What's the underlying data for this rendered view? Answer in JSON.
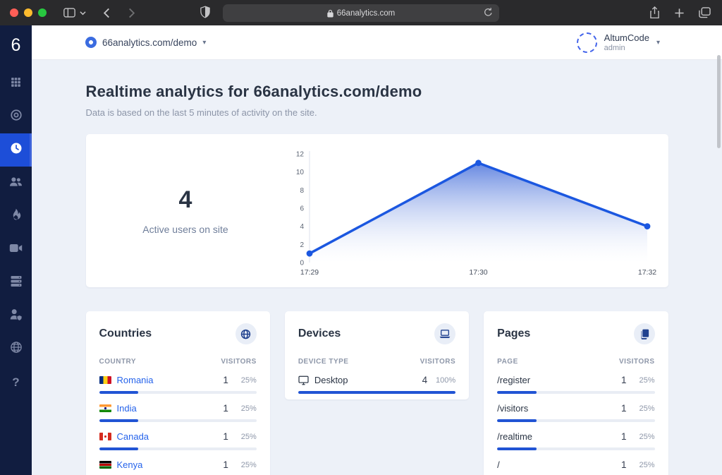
{
  "browser": {
    "url": "66analytics.com",
    "traffic_lights": [
      "#ff5f57",
      "#febc2e",
      "#28c840"
    ]
  },
  "sidebar": {
    "logo": "6",
    "items": [
      {
        "icon": "grid-icon",
        "active": false
      },
      {
        "icon": "target-icon",
        "active": false
      },
      {
        "icon": "clock-icon",
        "active": true
      },
      {
        "icon": "users-icon",
        "active": false
      },
      {
        "icon": "flame-icon",
        "active": false
      },
      {
        "icon": "video-icon",
        "active": false
      },
      {
        "icon": "server-icon",
        "active": false
      },
      {
        "icon": "user-shield-icon",
        "active": false
      },
      {
        "icon": "globe-icon",
        "active": false
      },
      {
        "icon": "question-icon",
        "active": false
      }
    ]
  },
  "topbar": {
    "site_selector": "66analytics.com/demo",
    "user_name": "AltumCode",
    "user_role": "admin"
  },
  "page": {
    "title": "Realtime analytics for 66analytics.com/demo",
    "subtitle": "Data is based on the last 5 minutes of activity on the site."
  },
  "realtime": {
    "active_users": "4",
    "active_label": "Active users on site"
  },
  "chart_data": {
    "type": "area",
    "x": [
      "17:29",
      "17:30",
      "17:32"
    ],
    "values": [
      1,
      11,
      4
    ],
    "ylim": [
      0,
      12
    ],
    "yticks": [
      0,
      2,
      4,
      6,
      8,
      10,
      12
    ],
    "line_color": "#1b57e0",
    "fill_top_color": "#4a72db",
    "grid": false,
    "title": "",
    "xlabel": "",
    "ylabel": ""
  },
  "cards": [
    {
      "title": "Countries",
      "icon": "globe-badge-icon",
      "columns": [
        "COUNTRY",
        "VISITORS"
      ],
      "rows": [
        {
          "name": "Romania",
          "link": true,
          "visitors": "1",
          "pct": "25%",
          "bar": 25,
          "flag": {
            "dir": "right",
            "colors": [
              "#002B7F",
              "#FCD116",
              "#CE1126"
            ],
            "stops": [
              33.3,
              66.6
            ]
          }
        },
        {
          "name": "India",
          "link": true,
          "visitors": "1",
          "pct": "25%",
          "bar": 25,
          "flag": {
            "dir": "bottom",
            "colors": [
              "#FF9933",
              "#FFFFFF",
              "#138808"
            ],
            "stops": [
              33.3,
              66.6
            ],
            "center": "#000080"
          }
        },
        {
          "name": "Canada",
          "link": true,
          "visitors": "1",
          "pct": "25%",
          "bar": 25,
          "flag": {
            "dir": "right",
            "colors": [
              "#D52B1E",
              "#FFFFFF",
              "#D52B1E"
            ],
            "stops": [
              28,
              72
            ],
            "center": "#D52B1E"
          }
        },
        {
          "name": "Kenya",
          "link": true,
          "visitors": "1",
          "pct": "25%",
          "bar": 25,
          "flag": {
            "dir": "bottom",
            "colors": [
              "#000000",
              "#FFFFFF",
              "#BB0000",
              "#FFFFFF",
              "#006600"
            ],
            "stops": [
              30,
              36,
              64,
              70
            ]
          }
        }
      ]
    },
    {
      "title": "Devices",
      "icon": "laptop-badge-icon",
      "columns": [
        "DEVICE TYPE",
        "VISITORS"
      ],
      "rows": [
        {
          "name": "Desktop",
          "link": false,
          "icon": "monitor-icon",
          "visitors": "4",
          "pct": "100%",
          "bar": 100
        }
      ]
    },
    {
      "title": "Pages",
      "icon": "pages-badge-icon",
      "columns": [
        "PAGE",
        "VISITORS"
      ],
      "rows": [
        {
          "name": "/register",
          "link": false,
          "visitors": "1",
          "pct": "25%",
          "bar": 25
        },
        {
          "name": "/visitors",
          "link": false,
          "visitors": "1",
          "pct": "25%",
          "bar": 25
        },
        {
          "name": "/realtime",
          "link": false,
          "visitors": "1",
          "pct": "25%",
          "bar": 25
        },
        {
          "name": "/",
          "link": false,
          "visitors": "1",
          "pct": "25%",
          "bar": 25
        }
      ]
    }
  ]
}
